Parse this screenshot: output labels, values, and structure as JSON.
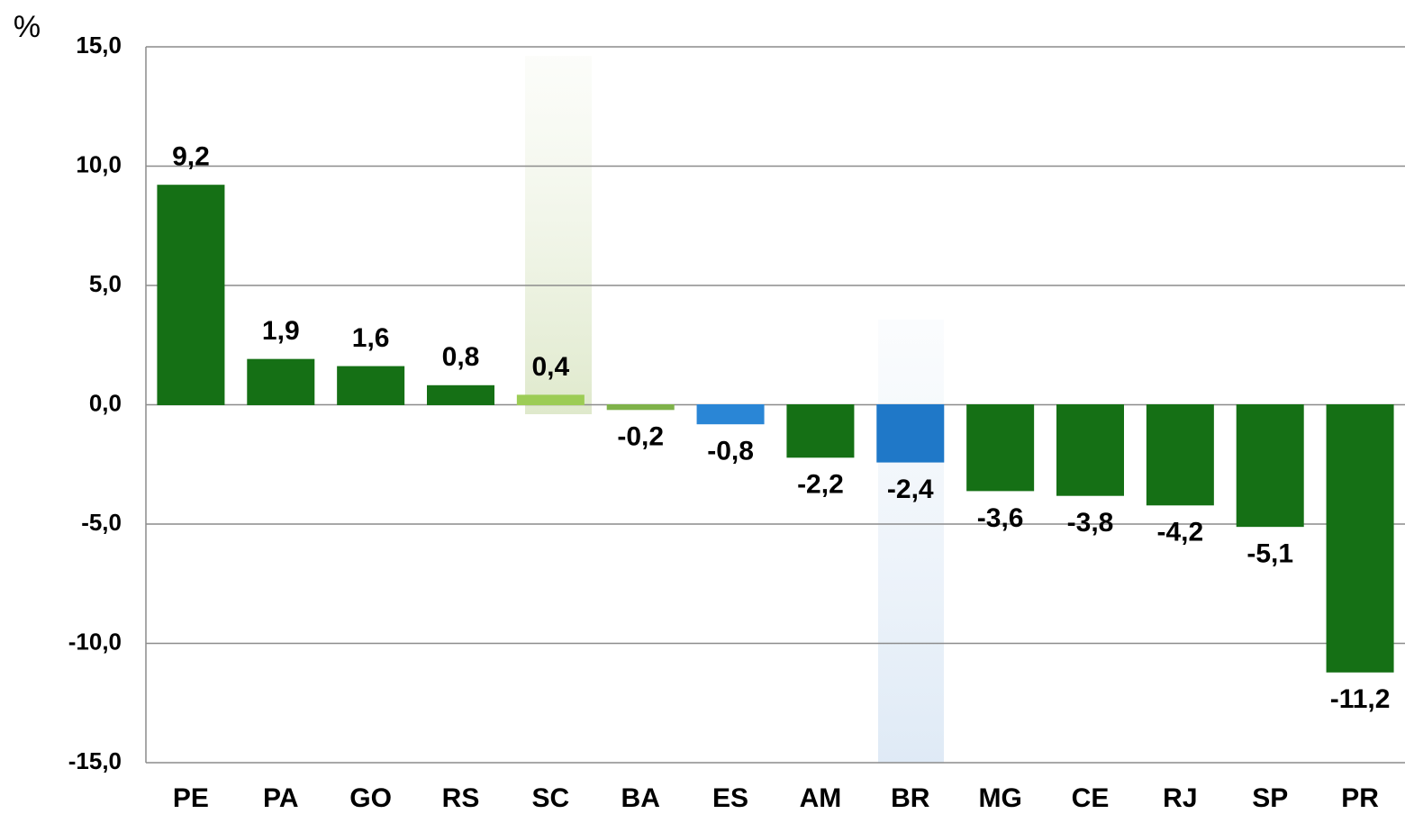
{
  "chart_data": {
    "type": "bar",
    "y_label": "%",
    "categories": [
      "PE",
      "PA",
      "GO",
      "RS",
      "SC",
      "BA",
      "ES",
      "AM",
      "BR",
      "MG",
      "CE",
      "RJ",
      "SP",
      "PR"
    ],
    "values": [
      9.2,
      1.9,
      1.6,
      0.8,
      0.4,
      -0.2,
      -0.8,
      -2.2,
      -2.4,
      -3.6,
      -3.8,
      -4.2,
      -5.1,
      -11.2
    ],
    "value_labels": [
      "9,2",
      "1,9",
      "1,6",
      "0,8",
      "0,4",
      "-0,2",
      "-0,8",
      "-2,2",
      "-2,4",
      "-3,6",
      "-3,8",
      "-4,2",
      "-5,1",
      "-11,2"
    ],
    "colors": [
      "#157015",
      "#157015",
      "#157015",
      "#157015",
      "#9ccc55",
      "#7fb24a",
      "#2a86d6",
      "#157015",
      "#1f78c8",
      "#157015",
      "#157015",
      "#157015",
      "#157015",
      "#157015"
    ],
    "ylim": [
      -15,
      15
    ],
    "yticks": [
      {
        "value": -15,
        "label": "-15,0"
      },
      {
        "value": -10,
        "label": "-10,0"
      },
      {
        "value": -5,
        "label": "-5,0"
      },
      {
        "value": 0,
        "label": "0,0"
      },
      {
        "value": 5,
        "label": "5,0"
      },
      {
        "value": 10,
        "label": "10,0"
      },
      {
        "value": 15,
        "label": "15,0"
      }
    ],
    "grid": true
  }
}
